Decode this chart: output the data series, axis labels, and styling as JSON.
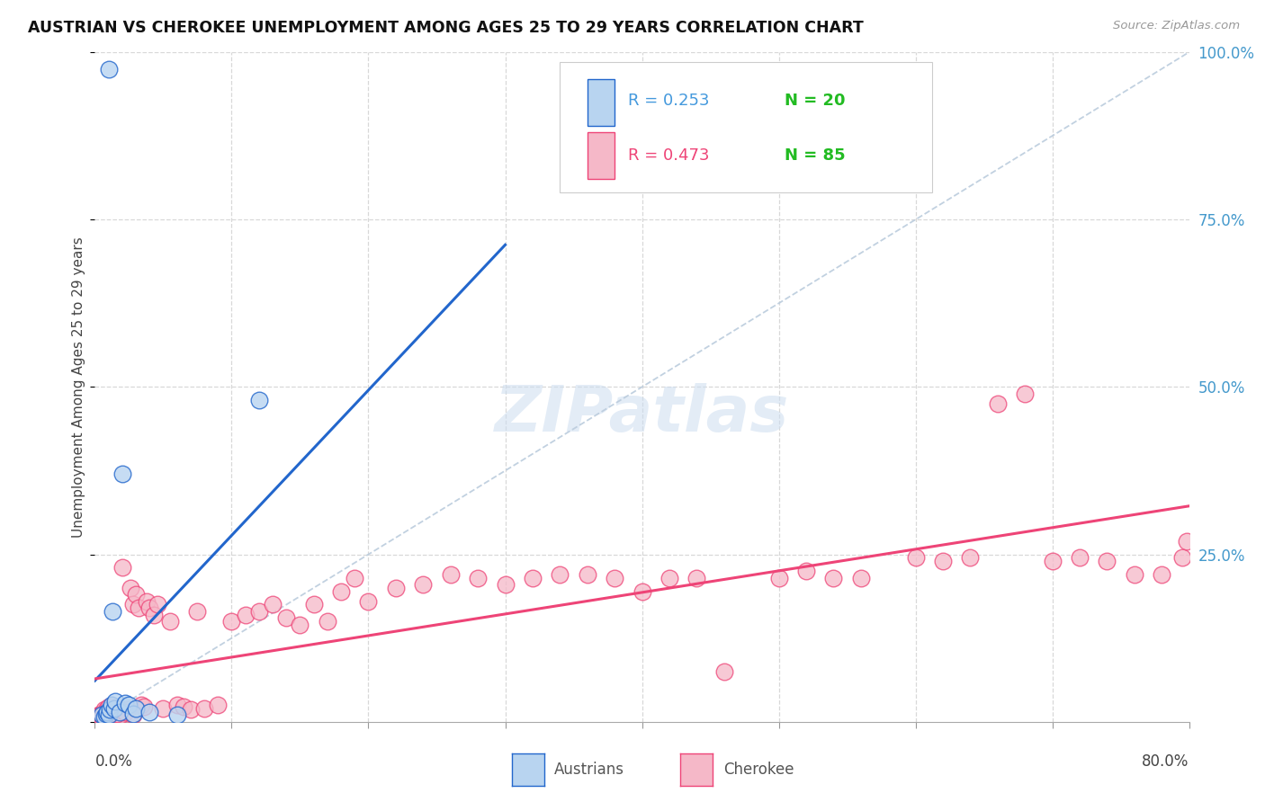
{
  "title": "AUSTRIAN VS CHEROKEE UNEMPLOYMENT AMONG AGES 25 TO 29 YEARS CORRELATION CHART",
  "source": "Source: ZipAtlas.com",
  "ylabel": "Unemployment Among Ages 25 to 29 years",
  "xlim": [
    0,
    0.8
  ],
  "ylim": [
    0,
    1.0
  ],
  "legend_R1": "R = 0.253",
  "legend_N1": "N = 20",
  "legend_R2": "R = 0.473",
  "legend_N2": "N = 85",
  "r1_color": "#4499dd",
  "n1_color": "#22bb22",
  "r2_color": "#ee4477",
  "n2_color": "#22bb22",
  "austrians_fill": "#b8d4f0",
  "cherokee_fill": "#f5b8c8",
  "line_austrians": "#2266cc",
  "line_cherokee": "#ee4477",
  "diag_color": "#bbccdd",
  "background_color": "#ffffff",
  "grid_color": "#d8d8d8",
  "watermark_color": "#ccddf0",
  "austrians_x": [
    0.005,
    0.007,
    0.008,
    0.009,
    0.01,
    0.011,
    0.012,
    0.013,
    0.014,
    0.015,
    0.018,
    0.02,
    0.022,
    0.025,
    0.028,
    0.03,
    0.04,
    0.06,
    0.12,
    0.01
  ],
  "austrians_y": [
    0.01,
    0.008,
    0.012,
    0.015,
    0.01,
    0.018,
    0.025,
    0.165,
    0.02,
    0.03,
    0.015,
    0.37,
    0.028,
    0.025,
    0.012,
    0.02,
    0.015,
    0.01,
    0.48,
    0.975
  ],
  "cherokee_x": [
    0.003,
    0.004,
    0.005,
    0.006,
    0.007,
    0.008,
    0.009,
    0.01,
    0.011,
    0.012,
    0.013,
    0.014,
    0.015,
    0.016,
    0.017,
    0.018,
    0.019,
    0.02,
    0.022,
    0.024,
    0.026,
    0.028,
    0.03,
    0.032,
    0.034,
    0.036,
    0.038,
    0.04,
    0.043,
    0.046,
    0.05,
    0.055,
    0.06,
    0.065,
    0.07,
    0.075,
    0.08,
    0.09,
    0.1,
    0.11,
    0.12,
    0.13,
    0.14,
    0.15,
    0.16,
    0.17,
    0.18,
    0.19,
    0.2,
    0.22,
    0.24,
    0.26,
    0.28,
    0.3,
    0.32,
    0.34,
    0.36,
    0.38,
    0.4,
    0.42,
    0.44,
    0.46,
    0.5,
    0.52,
    0.54,
    0.56,
    0.6,
    0.62,
    0.64,
    0.66,
    0.68,
    0.7,
    0.72,
    0.74,
    0.76,
    0.78,
    0.795,
    0.798,
    0.005,
    0.008,
    0.01,
    0.013,
    0.016,
    0.022,
    0.028
  ],
  "cherokee_y": [
    0.01,
    0.012,
    0.008,
    0.015,
    0.018,
    0.012,
    0.02,
    0.015,
    0.01,
    0.018,
    0.022,
    0.016,
    0.012,
    0.015,
    0.02,
    0.015,
    0.01,
    0.23,
    0.015,
    0.018,
    0.2,
    0.175,
    0.19,
    0.17,
    0.025,
    0.022,
    0.18,
    0.17,
    0.16,
    0.175,
    0.02,
    0.15,
    0.025,
    0.022,
    0.018,
    0.165,
    0.02,
    0.025,
    0.15,
    0.16,
    0.165,
    0.175,
    0.155,
    0.145,
    0.175,
    0.15,
    0.195,
    0.215,
    0.18,
    0.2,
    0.205,
    0.22,
    0.215,
    0.205,
    0.215,
    0.22,
    0.22,
    0.215,
    0.195,
    0.215,
    0.215,
    0.075,
    0.215,
    0.225,
    0.215,
    0.215,
    0.245,
    0.24,
    0.245,
    0.475,
    0.49,
    0.24,
    0.245,
    0.24,
    0.22,
    0.22,
    0.245,
    0.27,
    0.01,
    0.008,
    0.022,
    0.018,
    0.012,
    0.015,
    0.01
  ]
}
